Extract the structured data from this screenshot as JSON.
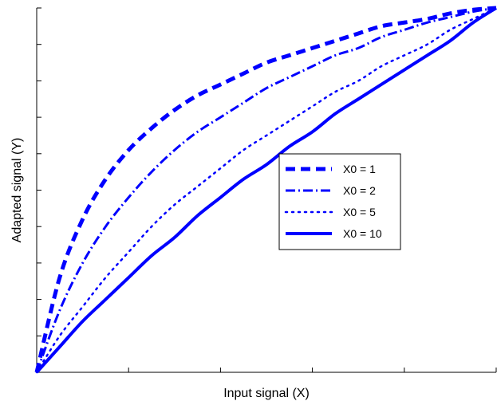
{
  "chart_data": {
    "type": "line",
    "title": "",
    "xlabel": "Input signal (X)",
    "ylabel": "Adapted signal (Y)",
    "xlim": [
      0,
      1
    ],
    "ylim": [
      0,
      1
    ],
    "grid": false,
    "legend_position": "right-center",
    "series_colors": "#0000ff",
    "x": [
      0,
      0.05,
      0.1,
      0.15,
      0.2,
      0.25,
      0.3,
      0.35,
      0.4,
      0.45,
      0.5,
      0.55,
      0.6,
      0.65,
      0.7,
      0.75,
      0.8,
      0.85,
      0.9,
      0.95,
      1.0
    ],
    "series": [
      {
        "name": "X0 = 1",
        "style": "dashed",
        "values": [
          0,
          0.26,
          0.42,
          0.53,
          0.61,
          0.67,
          0.72,
          0.76,
          0.79,
          0.82,
          0.85,
          0.87,
          0.89,
          0.91,
          0.93,
          0.95,
          0.96,
          0.97,
          0.985,
          0.995,
          1.0
        ]
      },
      {
        "name": "X0 = 2",
        "style": "dash-dot",
        "values": [
          0,
          0.17,
          0.3,
          0.4,
          0.48,
          0.55,
          0.61,
          0.66,
          0.7,
          0.74,
          0.78,
          0.81,
          0.84,
          0.87,
          0.89,
          0.92,
          0.94,
          0.96,
          0.975,
          0.99,
          1.0
        ]
      },
      {
        "name": "X0 = 5",
        "style": "dotted",
        "values": [
          0,
          0.1,
          0.18,
          0.26,
          0.33,
          0.4,
          0.46,
          0.51,
          0.56,
          0.61,
          0.65,
          0.69,
          0.73,
          0.77,
          0.8,
          0.84,
          0.87,
          0.9,
          0.94,
          0.97,
          1.0
        ]
      },
      {
        "name": "X0 = 10",
        "style": "solid",
        "values": [
          0,
          0.07,
          0.14,
          0.2,
          0.26,
          0.32,
          0.37,
          0.43,
          0.48,
          0.53,
          0.57,
          0.62,
          0.66,
          0.71,
          0.75,
          0.79,
          0.83,
          0.87,
          0.91,
          0.96,
          1.0
        ]
      }
    ],
    "x_tick_values": [
      0,
      0.2,
      0.4,
      0.6,
      0.8,
      1.0
    ],
    "y_tick_values": [
      0,
      0.1,
      0.2,
      0.3,
      0.4,
      0.5,
      0.6,
      0.7,
      0.8,
      0.9,
      1.0
    ]
  }
}
